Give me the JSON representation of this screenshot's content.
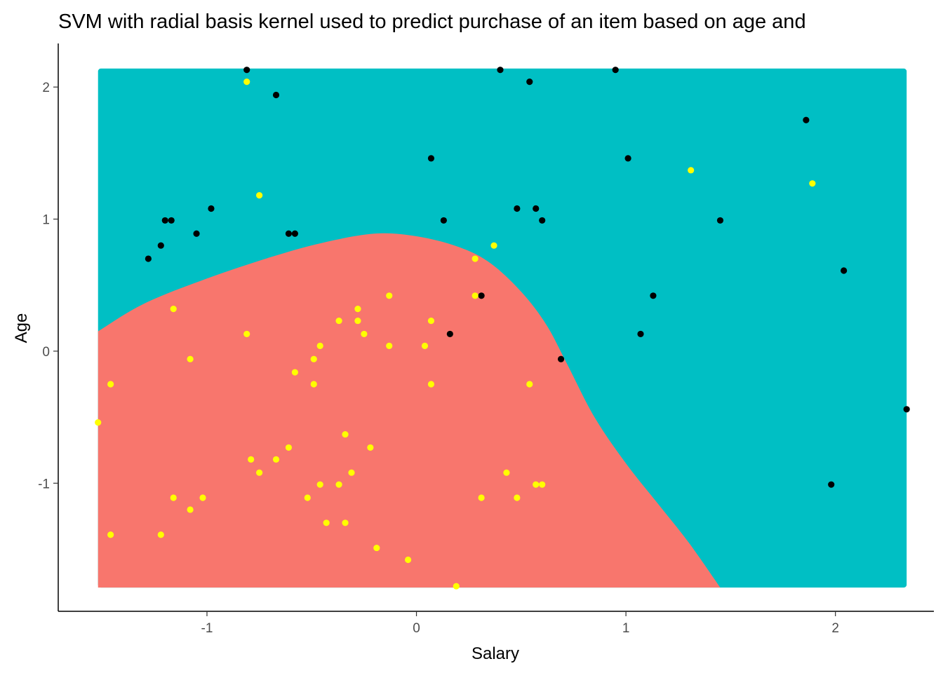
{
  "chart_data": {
    "type": "scatter",
    "title": "SVM with radial basis kernel used to predict purchase of an item based on age and",
    "xlabel": "Salary",
    "ylabel": "Age",
    "xlim": [
      -1.71,
      2.47
    ],
    "ylim": [
      -1.97,
      2.33
    ],
    "x_ticks": [
      -1,
      0,
      1,
      2
    ],
    "y_ticks": [
      -1,
      0,
      1,
      2
    ],
    "x_tick_labels": [
      "-1",
      "0",
      "1",
      "2"
    ],
    "y_tick_labels": [
      "-1",
      "0",
      "1",
      "2"
    ],
    "grid": false,
    "legend": "none",
    "region_extent": {
      "x": [
        -1.52,
        2.34
      ],
      "y": [
        -1.79,
        2.14
      ]
    },
    "regions": [
      {
        "class": "1",
        "color": "#00BFC4"
      },
      {
        "class": "0",
        "color": "#F8766D"
      }
    ],
    "decision_boundary": [
      [
        -1.52,
        0.15
      ],
      [
        -1.3,
        0.36
      ],
      [
        -1.0,
        0.55
      ],
      [
        -0.7,
        0.71
      ],
      [
        -0.45,
        0.82
      ],
      [
        -0.2,
        0.89
      ],
      [
        0.0,
        0.87
      ],
      [
        0.2,
        0.79
      ],
      [
        0.35,
        0.67
      ],
      [
        0.5,
        0.45
      ],
      [
        0.62,
        0.2
      ],
      [
        0.72,
        -0.1
      ],
      [
        0.85,
        -0.5
      ],
      [
        1.0,
        -0.85
      ],
      [
        1.15,
        -1.15
      ],
      [
        1.3,
        -1.45
      ],
      [
        1.45,
        -1.79
      ]
    ],
    "series": [
      {
        "class": "1",
        "color": "#000000",
        "points": [
          [
            -0.81,
            2.13
          ],
          [
            -0.67,
            1.94
          ],
          [
            0.4,
            2.13
          ],
          [
            0.54,
            2.04
          ],
          [
            0.95,
            2.13
          ],
          [
            0.07,
            1.46
          ],
          [
            1.01,
            1.46
          ],
          [
            1.86,
            1.75
          ],
          [
            -0.98,
            1.08
          ],
          [
            0.48,
            1.08
          ],
          [
            0.57,
            1.08
          ],
          [
            -1.2,
            0.99
          ],
          [
            -1.17,
            0.99
          ],
          [
            0.13,
            0.99
          ],
          [
            0.6,
            0.99
          ],
          [
            1.45,
            0.99
          ],
          [
            -1.05,
            0.89
          ],
          [
            -0.61,
            0.89
          ],
          [
            -0.58,
            0.89
          ],
          [
            -1.22,
            0.8
          ],
          [
            -1.28,
            0.7
          ],
          [
            2.04,
            0.61
          ],
          [
            0.31,
            0.42
          ],
          [
            1.13,
            0.42
          ],
          [
            0.16,
            0.13
          ],
          [
            1.07,
            0.13
          ],
          [
            0.69,
            -0.06
          ],
          [
            2.34,
            -0.44
          ],
          [
            1.98,
            -1.01
          ]
        ]
      },
      {
        "class": "0",
        "color": "#FFFF00",
        "points": [
          [
            -0.81,
            2.04
          ],
          [
            -0.75,
            1.18
          ],
          [
            1.31,
            1.37
          ],
          [
            1.89,
            1.27
          ],
          [
            0.37,
            0.8
          ],
          [
            0.28,
            0.7
          ],
          [
            -1.16,
            0.32
          ],
          [
            -0.28,
            0.32
          ],
          [
            -0.13,
            0.42
          ],
          [
            0.28,
            0.42
          ],
          [
            -0.37,
            0.23
          ],
          [
            -0.28,
            0.23
          ],
          [
            0.07,
            0.23
          ],
          [
            -0.81,
            0.13
          ],
          [
            -0.25,
            0.13
          ],
          [
            -0.46,
            0.04
          ],
          [
            -0.13,
            0.04
          ],
          [
            0.04,
            0.04
          ],
          [
            -1.08,
            -0.06
          ],
          [
            -0.49,
            -0.06
          ],
          [
            -0.58,
            -0.16
          ],
          [
            -1.46,
            -0.25
          ],
          [
            -0.49,
            -0.25
          ],
          [
            0.07,
            -0.25
          ],
          [
            0.54,
            -0.25
          ],
          [
            -1.52,
            -0.54
          ],
          [
            -0.34,
            -0.63
          ],
          [
            -0.61,
            -0.73
          ],
          [
            -0.22,
            -0.73
          ],
          [
            -0.79,
            -0.82
          ],
          [
            -0.67,
            -0.82
          ],
          [
            -0.75,
            -0.92
          ],
          [
            -0.31,
            -0.92
          ],
          [
            0.43,
            -0.92
          ],
          [
            -0.46,
            -1.01
          ],
          [
            -0.37,
            -1.01
          ],
          [
            0.57,
            -1.01
          ],
          [
            0.6,
            -1.01
          ],
          [
            -1.16,
            -1.11
          ],
          [
            -1.02,
            -1.11
          ],
          [
            -0.52,
            -1.11
          ],
          [
            0.31,
            -1.11
          ],
          [
            0.48,
            -1.11
          ],
          [
            -1.08,
            -1.2
          ],
          [
            -0.43,
            -1.3
          ],
          [
            -0.34,
            -1.3
          ],
          [
            -1.46,
            -1.39
          ],
          [
            -1.22,
            -1.39
          ],
          [
            -0.19,
            -1.49
          ],
          [
            -0.04,
            -1.58
          ],
          [
            0.19,
            -1.78
          ]
        ]
      }
    ]
  }
}
